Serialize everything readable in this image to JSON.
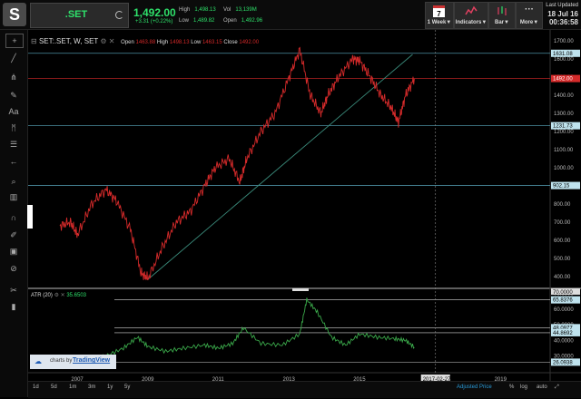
{
  "header": {
    "symbol": ".SET",
    "last_price": "1,492.00",
    "change": "+3.31 (+0.22%)",
    "quote": {
      "high_label": "High",
      "high": "1,498.13",
      "vol_label": "Vol",
      "vol": "13,139M",
      "low_label": "Low",
      "low": "1,489.82",
      "open_label": "Open",
      "open": "1,492.96"
    },
    "calendar_day": "7",
    "buttons": {
      "period": "1 Week▼",
      "indicators": "Indicators▼",
      "bar": "Bar▼",
      "more": "More▼"
    },
    "last_updated_label": "Last Updated",
    "last_updated_date": "18 Jul 16",
    "last_updated_time": "00:36:58"
  },
  "legend": {
    "title": "SET:.SET, W, SET",
    "open_label": "Open",
    "open": "1463.88",
    "high_label": "High",
    "high": "1498.13",
    "low_label": "Low",
    "low": "1463.15",
    "close_label": "Close",
    "close": "1492.00"
  },
  "atr": {
    "label": "ATR (20)",
    "value": "35.6503"
  },
  "price_labels": [
    "1631.08",
    "1492.00",
    "1231.73",
    "902.15"
  ],
  "atr_labels": [
    "65.8376",
    "48.0977",
    "44.8692",
    "26.0938"
  ],
  "atr_top_label": "70.0000",
  "branding": {
    "prefix": "charts by",
    "name": "TradingView"
  },
  "current_date_label": "2017-02-27",
  "ranges": [
    "1d",
    "5d",
    "1m",
    "3m",
    "1y",
    "5y"
  ],
  "adjusted_price": "Adjusted Price",
  "scale_options": [
    "%",
    "log",
    "auto"
  ],
  "chart_data": {
    "type": "line",
    "title": "SET:.SET, W, SET",
    "x_ticks": [
      "2007",
      "2009",
      "2011",
      "2013",
      "2015",
      "2017",
      "2019"
    ],
    "y_ticks": [
      400,
      500,
      600,
      700,
      800,
      900,
      1000,
      1100,
      1200,
      1300,
      1400,
      1500,
      1600,
      1700
    ],
    "ylim": [
      350,
      1720
    ],
    "series": [
      {
        "color": "#d42a2a",
        "x": [
          2006.5,
          2006.8,
          2007.0,
          2007.4,
          2007.8,
          2008.1,
          2008.5,
          2008.8,
          2009.0,
          2009.4,
          2009.8,
          2010.2,
          2010.6,
          2010.9,
          2011.3,
          2011.6,
          2011.8,
          2012.2,
          2012.6,
          2013.0,
          2013.3,
          2013.6,
          2013.9,
          2014.1,
          2014.4,
          2014.8,
          2015.0,
          2015.3,
          2015.6,
          2015.9,
          2016.1,
          2016.3,
          2016.55
        ],
        "values": [
          680,
          700,
          630,
          800,
          880,
          820,
          660,
          420,
          390,
          560,
          700,
          760,
          900,
          1000,
          1050,
          920,
          1050,
          1200,
          1300,
          1500,
          1650,
          1400,
          1300,
          1400,
          1500,
          1600,
          1590,
          1500,
          1400,
          1330,
          1250,
          1400,
          1492
        ]
      }
    ],
    "atr_ticks": [
      30,
      40,
      50,
      60,
      70
    ],
    "atr_ylim": [
      24,
      72
    ],
    "atr_series": {
      "name": "ATR (20)",
      "color": "#3aa84a",
      "x": [
        2006.5,
        2007.0,
        2007.8,
        2008.3,
        2008.7,
        2009.0,
        2009.5,
        2010.0,
        2010.6,
        2011.0,
        2011.4,
        2011.7,
        2012.2,
        2012.8,
        2013.3,
        2013.5,
        2013.8,
        2014.2,
        2014.6,
        2015.0,
        2015.5,
        2016.0,
        2016.3,
        2016.55
      ],
      "values": [
        28,
        27,
        30,
        35,
        42,
        36,
        33,
        35,
        37,
        35,
        38,
        48,
        38,
        37,
        44,
        66,
        58,
        42,
        37,
        44,
        42,
        41,
        40,
        35.65
      ]
    }
  },
  "colors": {
    "price_line": "#d42a2a",
    "atr_line": "#3aa84a",
    "level_line": "#5aa9c0",
    "trend_line": "#3a8a7a",
    "accent_green": "#2ee06a"
  }
}
